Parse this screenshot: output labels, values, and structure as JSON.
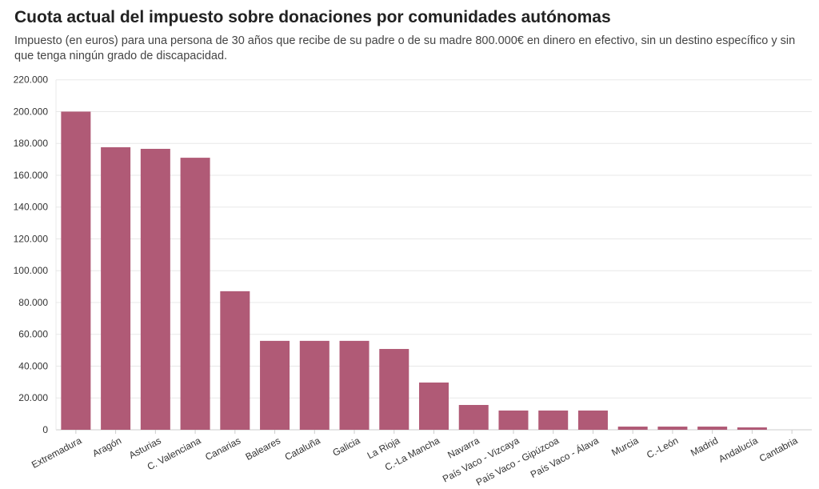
{
  "chart_data": {
    "type": "bar",
    "title": "Cuota actual del impuesto sobre donaciones por comunidades autónomas",
    "subtitle": "Impuesto (en euros) para una persona de 30 años que recibe de su padre o de su madre 800.000€ en dinero en efectivo, sin un destino específico y sin que tenga ningún grado de discapacidad.",
    "xlabel": "",
    "ylabel": "",
    "ylim": [
      0,
      220000
    ],
    "yticks": [
      "0",
      "20.000",
      "40.000",
      "60.000",
      "80.000",
      "100.000",
      "120.000",
      "140.000",
      "160.000",
      "180.000",
      "200.000",
      "220.000"
    ],
    "grid": true,
    "color": "#b05a76",
    "categories": [
      "Extremadura",
      "Aragón",
      "Asturias",
      "C. Valenciana",
      "Canarias",
      "Baleares",
      "Cataluña",
      "Galicia",
      "La Rioja",
      "C.-La Mancha",
      "Navarra",
      "País Vaco - Vizcaya",
      "País Vaco - Gipúzcoa",
      "País Vaco - Álava",
      "Murcia",
      "C.-León",
      "Madrid",
      "Andalucía",
      "Cantabria"
    ],
    "values": [
      200000,
      177600,
      176600,
      171000,
      87100,
      55900,
      55900,
      55900,
      50800,
      29700,
      15600,
      12100,
      12100,
      12100,
      2000,
      2000,
      2000,
      1500,
      0
    ]
  }
}
